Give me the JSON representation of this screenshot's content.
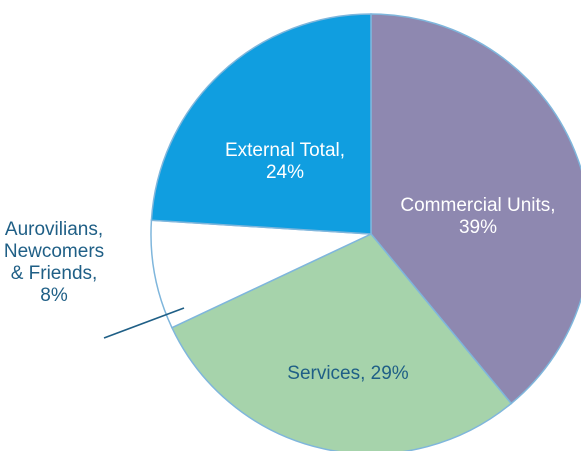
{
  "chart_data": {
    "type": "pie",
    "title": "",
    "slices": [
      {
        "label_lines": [
          "Commercial Units,",
          "39%"
        ],
        "value": 39,
        "color": "#8e88b0",
        "label_color": "#ffffff"
      },
      {
        "label_lines": [
          "Services, 29%"
        ],
        "value": 29,
        "color": "#a6d3ab",
        "label_color": "#1f5f86"
      },
      {
        "label_lines": [
          "Aurovilians,",
          "Newcomers",
          "& Friends,",
          "8%"
        ],
        "value": 8,
        "color": "#ffffff",
        "label_color": "#1f5f86"
      },
      {
        "label_lines": [
          "External Total,",
          "24%"
        ],
        "value": 24,
        "color": "#109ee0",
        "label_color": "#ffffff"
      }
    ],
    "start_angle_deg": 0,
    "direction": "clockwise",
    "legend": "none",
    "edge_color": "#7fb6dc"
  }
}
